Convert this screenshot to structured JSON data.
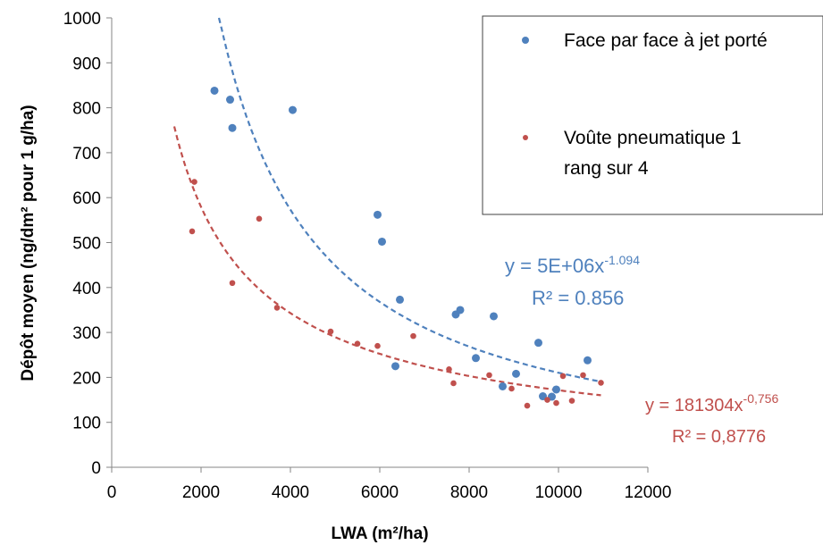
{
  "chart_data": {
    "type": "scatter",
    "title": "",
    "xlabel": "LWA (m²/ha)",
    "ylabel": "Dépôt moyen (ng/dm² pour 1 g/ha)",
    "xlim": [
      0,
      12000
    ],
    "ylim": [
      0,
      1000
    ],
    "xticks": [
      "0",
      "2000",
      "4000",
      "6000",
      "8000",
      "10000",
      "12000"
    ],
    "yticks": [
      "0",
      "100",
      "200",
      "300",
      "400",
      "500",
      "600",
      "700",
      "800",
      "900",
      "1000"
    ],
    "grid": false,
    "legend_position": "top-right",
    "series": [
      {
        "name": "Face par face à jet porté",
        "color": "#4F81BD",
        "marker": "circle",
        "points": [
          [
            2300,
            838
          ],
          [
            2650,
            818
          ],
          [
            2700,
            755
          ],
          [
            4050,
            795
          ],
          [
            5950,
            562
          ],
          [
            6050,
            502
          ],
          [
            6450,
            373
          ],
          [
            6350,
            225
          ],
          [
            7700,
            340
          ],
          [
            7800,
            350
          ],
          [
            8150,
            243
          ],
          [
            8550,
            336
          ],
          [
            8750,
            180
          ],
          [
            9050,
            208
          ],
          [
            9550,
            277
          ],
          [
            9650,
            158
          ],
          [
            9850,
            157
          ],
          [
            9950,
            173
          ],
          [
            10650,
            238
          ]
        ],
        "trendline": {
          "type": "power",
          "coef": 5000000,
          "exp": -1.094,
          "x_range": [
            2400,
            10950
          ],
          "equation_prefix": "y = 5E+06x",
          "equation_exponent": "-1.094",
          "r2_label": "R² = 0.856"
        }
      },
      {
        "name": "Voûte pneumatique 1 rang sur 4",
        "color": "#C0504D",
        "marker": "circle",
        "points": [
          [
            1800,
            525
          ],
          [
            1850,
            635
          ],
          [
            2700,
            410
          ],
          [
            3300,
            553
          ],
          [
            3700,
            355
          ],
          [
            4900,
            302
          ],
          [
            5500,
            275
          ],
          [
            5950,
            270
          ],
          [
            6750,
            292
          ],
          [
            7550,
            218
          ],
          [
            7650,
            187
          ],
          [
            8450,
            205
          ],
          [
            8950,
            175
          ],
          [
            9300,
            137
          ],
          [
            9750,
            150
          ],
          [
            9950,
            143
          ],
          [
            10100,
            203
          ],
          [
            10300,
            148
          ],
          [
            10550,
            205
          ],
          [
            10950,
            188
          ]
        ],
        "trendline": {
          "type": "power",
          "coef": 181304,
          "exp": -0.756,
          "x_range": [
            1400,
            10950
          ],
          "equation_prefix": "y = 181304x",
          "equation_exponent": "-0,756",
          "r2_label": "R² = 0,8776"
        }
      }
    ]
  },
  "legend": {
    "entries": [
      {
        "lines": [
          "Face par face à jet porté"
        ]
      },
      {
        "lines": [
          "Voûte pneumatique 1",
          "rang sur 4"
        ]
      }
    ]
  }
}
